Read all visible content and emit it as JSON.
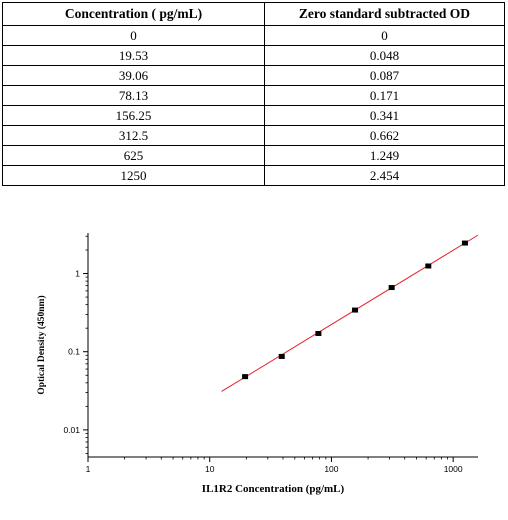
{
  "table": {
    "headers": [
      "Concentration ( pg/mL)",
      "Zero standard subtracted OD"
    ],
    "rows": [
      [
        "0",
        "0"
      ],
      [
        "19.53",
        "0.048"
      ],
      [
        "39.06",
        "0.087"
      ],
      [
        "78.13",
        "0.171"
      ],
      [
        "156.25",
        "0.341"
      ],
      [
        "312.5",
        "0.662"
      ],
      [
        "625",
        "1.249"
      ],
      [
        "1250",
        "2.454"
      ]
    ]
  },
  "chart_data": {
    "type": "scatter",
    "xlabel": "IL1R2 Concentration (pg/mL)",
    "ylabel": "Optical Density (450nm)",
    "x_scale": "log",
    "y_scale": "log",
    "xlim": [
      1,
      1600
    ],
    "ylim": [
      0.0045,
      3.3
    ],
    "x_ticks": [
      {
        "value": 1,
        "label": "1"
      },
      {
        "value": 10,
        "label": "10"
      },
      {
        "value": 100,
        "label": "100"
      },
      {
        "value": 1000,
        "label": "1000"
      }
    ],
    "y_ticks": [
      {
        "value": 0.01,
        "label": "0.01"
      },
      {
        "value": 0.1,
        "label": "0.1"
      },
      {
        "value": 1,
        "label": "1"
      }
    ],
    "grid": false,
    "series": [
      {
        "x": [
          19.53,
          39.06,
          78.13,
          156.25,
          312.5,
          625,
          1250
        ],
        "y": [
          0.048,
          0.087,
          0.171,
          0.341,
          0.662,
          1.249,
          2.454
        ],
        "marker_color": "#000000"
      }
    ],
    "fit_line": {
      "x": [
        12.5,
        1600
      ],
      "y": [
        0.031,
        3.1
      ],
      "color": "#e8202a"
    }
  }
}
